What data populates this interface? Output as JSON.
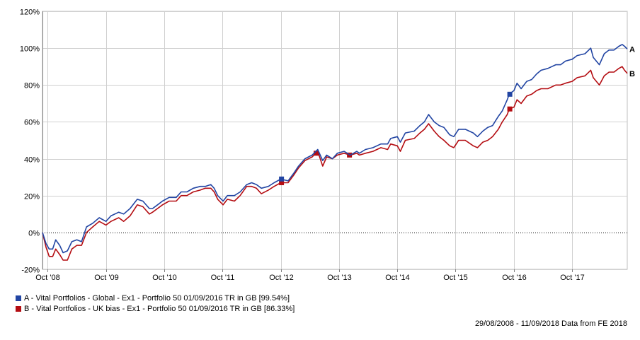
{
  "chart_data": {
    "type": "line",
    "y_unit": "%",
    "ylim": [
      -20,
      120
    ],
    "y_ticks": [
      -20,
      0,
      20,
      40,
      60,
      80,
      100,
      120
    ],
    "y_tick_labels": [
      "-20%",
      "0%",
      "20%",
      "40%",
      "60%",
      "80%",
      "100%",
      "120%"
    ],
    "x_range": [
      "2008-08-29",
      "2018-09-11"
    ],
    "x_ticks": [
      "2008-10-01",
      "2009-10-01",
      "2010-10-01",
      "2011-10-01",
      "2012-10-01",
      "2013-10-01",
      "2014-10-01",
      "2015-10-01",
      "2016-10-01",
      "2017-10-01"
    ],
    "x_tick_labels": [
      "Oct '08",
      "Oct '09",
      "Oct '10",
      "Oct '11",
      "Oct '12",
      "Oct '13",
      "Oct '14",
      "Oct '15",
      "Oct '16",
      "Oct '17"
    ],
    "grid": true,
    "zero_line": "dotted",
    "legend_position": "bottom-left",
    "series": [
      {
        "name": "A - Vital Portfolios - Global - Ex1 - Portfolio 50 01/09/2016 TR in GB [99.54%]",
        "end_label": "A",
        "color": "#2245a3",
        "points": [
          [
            "2008-08-29",
            0
          ],
          [
            "2008-09-20",
            -6
          ],
          [
            "2008-10-10",
            -9
          ],
          [
            "2008-11-01",
            -9
          ],
          [
            "2008-11-20",
            -4
          ],
          [
            "2008-12-15",
            -7
          ],
          [
            "2009-01-05",
            -11
          ],
          [
            "2009-02-01",
            -10
          ],
          [
            "2009-03-01",
            -5
          ],
          [
            "2009-04-01",
            -4
          ],
          [
            "2009-05-01",
            -5
          ],
          [
            "2009-06-01",
            3
          ],
          [
            "2009-07-10",
            5
          ],
          [
            "2009-08-20",
            8
          ],
          [
            "2009-10-01",
            6
          ],
          [
            "2009-11-01",
            9
          ],
          [
            "2009-12-20",
            11
          ],
          [
            "2010-01-20",
            10
          ],
          [
            "2010-03-01",
            13
          ],
          [
            "2010-04-15",
            18
          ],
          [
            "2010-05-20",
            17
          ],
          [
            "2010-06-30",
            13
          ],
          [
            "2010-07-20",
            13
          ],
          [
            "2010-08-20",
            15
          ],
          [
            "2010-09-20",
            17
          ],
          [
            "2010-11-01",
            19
          ],
          [
            "2010-12-15",
            19
          ],
          [
            "2011-01-15",
            22
          ],
          [
            "2011-02-20",
            22
          ],
          [
            "2011-04-01",
            24
          ],
          [
            "2011-05-15",
            25
          ],
          [
            "2011-06-15",
            25
          ],
          [
            "2011-07-20",
            26
          ],
          [
            "2011-08-10",
            24
          ],
          [
            "2011-09-01",
            20
          ],
          [
            "2011-10-05",
            17
          ],
          [
            "2011-11-01",
            20
          ],
          [
            "2011-12-15",
            20
          ],
          [
            "2012-01-20",
            22
          ],
          [
            "2012-03-01",
            26
          ],
          [
            "2012-04-01",
            27
          ],
          [
            "2012-05-01",
            26
          ],
          [
            "2012-06-01",
            24
          ],
          [
            "2012-07-15",
            25
          ],
          [
            "2012-08-20",
            27
          ],
          [
            "2012-10-01",
            29
          ],
          [
            "2012-11-15",
            28
          ],
          [
            "2012-12-20",
            32
          ],
          [
            "2013-01-20",
            36
          ],
          [
            "2013-03-01",
            40
          ],
          [
            "2013-04-15",
            42
          ],
          [
            "2013-05-20",
            45
          ],
          [
            "2013-06-20",
            39
          ],
          [
            "2013-07-15",
            42
          ],
          [
            "2013-08-20",
            40
          ],
          [
            "2013-09-20",
            43
          ],
          [
            "2013-11-01",
            44
          ],
          [
            "2013-12-10",
            42
          ],
          [
            "2014-01-20",
            44
          ],
          [
            "2014-02-05",
            43
          ],
          [
            "2014-03-15",
            45
          ],
          [
            "2014-05-01",
            46
          ],
          [
            "2014-06-20",
            48
          ],
          [
            "2014-08-01",
            48
          ],
          [
            "2014-08-20",
            51
          ],
          [
            "2014-10-01",
            52
          ],
          [
            "2014-10-20",
            49
          ],
          [
            "2014-11-20",
            54
          ],
          [
            "2015-01-15",
            55
          ],
          [
            "2015-02-20",
            58
          ],
          [
            "2015-03-20",
            60
          ],
          [
            "2015-04-15",
            64
          ],
          [
            "2015-05-20",
            60
          ],
          [
            "2015-06-20",
            58
          ],
          [
            "2015-07-20",
            57
          ],
          [
            "2015-08-25",
            53
          ],
          [
            "2015-09-20",
            52
          ],
          [
            "2015-10-20",
            56
          ],
          [
            "2015-12-01",
            56
          ],
          [
            "2016-01-20",
            54
          ],
          [
            "2016-02-15",
            52
          ],
          [
            "2016-03-20",
            55
          ],
          [
            "2016-04-20",
            57
          ],
          [
            "2016-05-20",
            58
          ],
          [
            "2016-06-25",
            63
          ],
          [
            "2016-07-20",
            66
          ],
          [
            "2016-08-20",
            72
          ],
          [
            "2016-09-01",
            75
          ],
          [
            "2016-10-01",
            77
          ],
          [
            "2016-10-20",
            81
          ],
          [
            "2016-11-15",
            78
          ],
          [
            "2016-12-20",
            82
          ],
          [
            "2017-01-20",
            83
          ],
          [
            "2017-02-20",
            86
          ],
          [
            "2017-03-20",
            88
          ],
          [
            "2017-05-01",
            89
          ],
          [
            "2017-06-20",
            91
          ],
          [
            "2017-07-20",
            91
          ],
          [
            "2017-08-20",
            93
          ],
          [
            "2017-10-01",
            94
          ],
          [
            "2017-11-01",
            96
          ],
          [
            "2017-12-20",
            97
          ],
          [
            "2018-01-25",
            100
          ],
          [
            "2018-02-10",
            95
          ],
          [
            "2018-03-20",
            91
          ],
          [
            "2018-04-20",
            97
          ],
          [
            "2018-05-20",
            99
          ],
          [
            "2018-06-20",
            99
          ],
          [
            "2018-07-20",
            101
          ],
          [
            "2018-08-10",
            102
          ],
          [
            "2018-08-25",
            101
          ],
          [
            "2018-09-11",
            99.54
          ]
        ],
        "markers": [
          [
            "2012-10-05",
            29
          ],
          [
            "2016-09-05",
            75
          ]
        ]
      },
      {
        "name": "B - Vital Portfolios - UK bias - Ex1 - Portfolio 50 01/09/2016 TR in GB [86.33%]",
        "end_label": "B",
        "color": "#b40d12",
        "points": [
          [
            "2008-08-29",
            0
          ],
          [
            "2008-09-20",
            -8
          ],
          [
            "2008-10-10",
            -13
          ],
          [
            "2008-11-01",
            -13
          ],
          [
            "2008-11-20",
            -9
          ],
          [
            "2008-12-15",
            -12
          ],
          [
            "2009-01-05",
            -15
          ],
          [
            "2009-02-01",
            -15
          ],
          [
            "2009-03-01",
            -9
          ],
          [
            "2009-04-01",
            -7
          ],
          [
            "2009-05-01",
            -7
          ],
          [
            "2009-06-01",
            0
          ],
          [
            "2009-07-10",
            3
          ],
          [
            "2009-08-20",
            6
          ],
          [
            "2009-10-01",
            4
          ],
          [
            "2009-11-01",
            6
          ],
          [
            "2009-12-20",
            8
          ],
          [
            "2010-01-20",
            6
          ],
          [
            "2010-03-01",
            9
          ],
          [
            "2010-04-15",
            15
          ],
          [
            "2010-05-20",
            14
          ],
          [
            "2010-06-30",
            10
          ],
          [
            "2010-07-20",
            11
          ],
          [
            "2010-08-20",
            13
          ],
          [
            "2010-09-20",
            15
          ],
          [
            "2010-11-01",
            17
          ],
          [
            "2010-12-15",
            17
          ],
          [
            "2011-01-15",
            20
          ],
          [
            "2011-02-20",
            20
          ],
          [
            "2011-04-01",
            22
          ],
          [
            "2011-05-15",
            23
          ],
          [
            "2011-06-15",
            24
          ],
          [
            "2011-07-20",
            24
          ],
          [
            "2011-08-10",
            22
          ],
          [
            "2011-09-01",
            18
          ],
          [
            "2011-10-05",
            15
          ],
          [
            "2011-11-01",
            18
          ],
          [
            "2011-12-15",
            17
          ],
          [
            "2012-01-20",
            20
          ],
          [
            "2012-03-01",
            25
          ],
          [
            "2012-04-01",
            25
          ],
          [
            "2012-05-01",
            24
          ],
          [
            "2012-06-01",
            21
          ],
          [
            "2012-07-15",
            23
          ],
          [
            "2012-08-20",
            25
          ],
          [
            "2012-10-01",
            27
          ],
          [
            "2012-11-15",
            27
          ],
          [
            "2012-12-20",
            31
          ],
          [
            "2013-01-20",
            35
          ],
          [
            "2013-03-01",
            39
          ],
          [
            "2013-04-15",
            41
          ],
          [
            "2013-05-20",
            44
          ],
          [
            "2013-06-20",
            36
          ],
          [
            "2013-07-15",
            41
          ],
          [
            "2013-08-20",
            40
          ],
          [
            "2013-09-20",
            42
          ],
          [
            "2013-11-01",
            43
          ],
          [
            "2013-12-10",
            42
          ],
          [
            "2014-01-20",
            43
          ],
          [
            "2014-02-05",
            42
          ],
          [
            "2014-03-15",
            43
          ],
          [
            "2014-05-01",
            44
          ],
          [
            "2014-06-20",
            46
          ],
          [
            "2014-08-01",
            45
          ],
          [
            "2014-08-20",
            48
          ],
          [
            "2014-10-01",
            47
          ],
          [
            "2014-10-20",
            44
          ],
          [
            "2014-11-20",
            50
          ],
          [
            "2015-01-15",
            51
          ],
          [
            "2015-02-20",
            54
          ],
          [
            "2015-03-20",
            56
          ],
          [
            "2015-04-15",
            59
          ],
          [
            "2015-05-20",
            55
          ],
          [
            "2015-06-20",
            52
          ],
          [
            "2015-07-20",
            50
          ],
          [
            "2015-08-25",
            47
          ],
          [
            "2015-09-20",
            46
          ],
          [
            "2015-10-20",
            50
          ],
          [
            "2015-12-01",
            50
          ],
          [
            "2016-01-20",
            47
          ],
          [
            "2016-02-15",
            46
          ],
          [
            "2016-03-20",
            49
          ],
          [
            "2016-04-20",
            50
          ],
          [
            "2016-05-20",
            52
          ],
          [
            "2016-06-25",
            56
          ],
          [
            "2016-07-20",
            60
          ],
          [
            "2016-08-20",
            64
          ],
          [
            "2016-09-01",
            67
          ],
          [
            "2016-10-01",
            68
          ],
          [
            "2016-10-20",
            72
          ],
          [
            "2016-11-15",
            70
          ],
          [
            "2016-12-20",
            74
          ],
          [
            "2017-01-20",
            75
          ],
          [
            "2017-02-20",
            77
          ],
          [
            "2017-03-20",
            78
          ],
          [
            "2017-05-01",
            78
          ],
          [
            "2017-06-20",
            80
          ],
          [
            "2017-07-20",
            80
          ],
          [
            "2017-08-20",
            81
          ],
          [
            "2017-10-01",
            82
          ],
          [
            "2017-11-01",
            84
          ],
          [
            "2017-12-20",
            85
          ],
          [
            "2018-01-25",
            88
          ],
          [
            "2018-02-10",
            84
          ],
          [
            "2018-03-20",
            80
          ],
          [
            "2018-04-20",
            85
          ],
          [
            "2018-05-20",
            87
          ],
          [
            "2018-06-20",
            87
          ],
          [
            "2018-07-20",
            89
          ],
          [
            "2018-08-10",
            90
          ],
          [
            "2018-08-25",
            88
          ],
          [
            "2018-09-11",
            86.33
          ]
        ],
        "markers": [
          [
            "2012-10-05",
            27
          ],
          [
            "2013-05-10",
            43
          ],
          [
            "2013-12-05",
            42
          ],
          [
            "2016-09-05",
            67
          ]
        ]
      }
    ]
  },
  "footer": {
    "text": "29/08/2008 - 11/09/2018 Data from FE 2018"
  }
}
